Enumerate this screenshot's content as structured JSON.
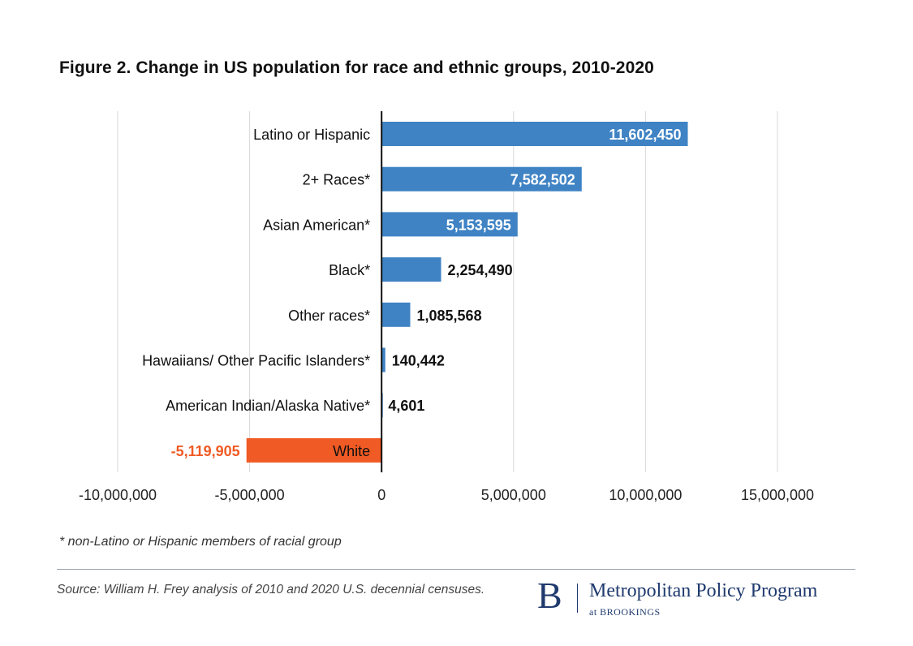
{
  "title": "Figure 2. Change in US population for race and ethnic groups, 2010-2020",
  "footnote": "* non-Latino or Hispanic members of racial group",
  "source": "Source: William H. Frey analysis of 2010 and 2020 U.S. decennial censuses.",
  "logo": {
    "letter": "B",
    "name": "Metropolitan Policy Program",
    "sub": "at BROOKINGS"
  },
  "colors": {
    "positive": "#3f83c4",
    "negative": "#f05a24",
    "negative_text": "#f05a24",
    "grid": "#d9d9d9",
    "axis": "#111111",
    "brand": "#1f3a6e"
  },
  "chart_data": {
    "type": "bar",
    "orientation": "horizontal",
    "title": "Figure 2. Change in US population for race and ethnic groups, 2010-2020",
    "categories": [
      "Latino or Hispanic",
      "2+ Races*",
      "Asian American*",
      "Black*",
      "Other races*",
      "Hawaiians/ Other Pacific Islanders*",
      "American Indian/Alaska Native*",
      "White"
    ],
    "values": [
      11602450,
      7582502,
      5153595,
      2254490,
      1085568,
      140442,
      4601,
      -5119905
    ],
    "value_labels": [
      "11,602,450",
      "7,582,502",
      "5,153,595",
      "2,254,490",
      "1,085,568",
      "140,442",
      "4,601",
      "-5,119,905"
    ],
    "xlim": [
      -10000000,
      15000000
    ],
    "xticks": [
      -10000000,
      -5000000,
      0,
      5000000,
      10000000,
      15000000
    ],
    "xtick_labels": [
      "-10,000,000",
      "-5,000,000",
      "0",
      "5,000,000",
      "10,000,000",
      "15,000,000"
    ],
    "grid": true,
    "xlabel": "",
    "ylabel": ""
  }
}
